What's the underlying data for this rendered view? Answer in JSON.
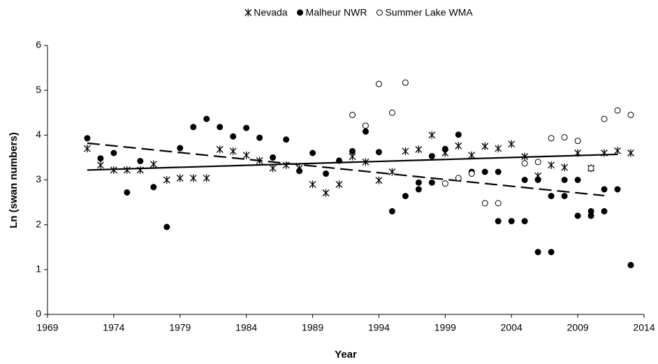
{
  "chart_data": {
    "type": "scatter",
    "xlabel": "Year",
    "ylabel": "Ln (swan numbers)",
    "xlim": [
      1969,
      2014
    ],
    "xticks": [
      1969,
      1974,
      1979,
      1984,
      1989,
      1994,
      1999,
      2004,
      2009,
      2014
    ],
    "ylim": [
      0,
      6
    ],
    "yticks": [
      0,
      1,
      2,
      3,
      4,
      5,
      6
    ],
    "legend": "top",
    "series": [
      {
        "name": "Nevada",
        "color": "#000000",
        "marker": "asterisk",
        "x": [
          1972,
          1973,
          1974,
          1975,
          1976,
          1977,
          1978,
          1979,
          1980,
          1981,
          1982,
          1983,
          1984,
          1985,
          1986,
          1987,
          1988,
          1989,
          1990,
          1991,
          1992,
          1993,
          1994,
          1995,
          1996,
          1997,
          1998,
          1999,
          2000,
          2001,
          2002,
          2003,
          2004,
          2005,
          2006,
          2007,
          2008,
          2009,
          2010,
          2011,
          2012,
          2013
        ],
        "y": [
          3.7,
          3.33,
          3.22,
          3.22,
          3.22,
          3.35,
          3.0,
          3.04,
          3.04,
          3.04,
          3.68,
          3.64,
          3.55,
          3.43,
          3.26,
          3.33,
          3.26,
          2.9,
          2.71,
          2.9,
          3.52,
          3.4,
          2.99,
          3.18,
          3.64,
          3.68,
          4.0,
          3.6,
          3.76,
          3.55,
          3.75,
          3.7,
          3.8,
          3.52,
          3.09,
          3.33,
          3.28,
          3.6,
          3.26,
          3.6,
          3.65,
          3.6
        ]
      },
      {
        "name": "Malheur NWR",
        "color": "#000000",
        "marker": "filled-circle",
        "x": [
          1972,
          1973,
          1974,
          1975,
          1976,
          1977,
          1978,
          1979,
          1980,
          1981,
          1982,
          1983,
          1984,
          1985,
          1986,
          1987,
          1988,
          1989,
          1990,
          1991,
          1992,
          1993,
          1994,
          1995,
          1996,
          1997,
          1997,
          1998,
          1998,
          1999,
          2000,
          2001,
          2002,
          2003,
          2003,
          2004,
          2005,
          2005,
          2006,
          2006,
          2007,
          2007,
          2008,
          2008,
          2009,
          2009,
          2010,
          2010,
          2011,
          2011,
          2012,
          2013
        ],
        "y": [
          3.93,
          3.48,
          3.6,
          2.72,
          3.42,
          2.84,
          1.95,
          3.71,
          4.18,
          4.36,
          4.18,
          3.97,
          4.16,
          3.94,
          3.5,
          3.9,
          3.2,
          3.6,
          3.14,
          3.43,
          3.64,
          4.08,
          3.62,
          2.3,
          2.64,
          2.94,
          2.79,
          3.53,
          2.94,
          3.69,
          4.01,
          3.18,
          3.18,
          3.18,
          2.08,
          2.08,
          3.0,
          2.08,
          3.0,
          1.39,
          2.64,
          1.39,
          3.0,
          2.64,
          3.0,
          2.2,
          2.3,
          2.2,
          2.3,
          2.79,
          2.79,
          1.1
        ]
      },
      {
        "name": "Summer Lake WMA",
        "color": "#000000",
        "marker": "open-circle",
        "x": [
          1992,
          1993,
          1994,
          1995,
          1996,
          1999,
          2000,
          2001,
          2002,
          2003,
          2005,
          2006,
          2007,
          2008,
          2009,
          2010,
          2011,
          2012,
          2013
        ],
        "y": [
          4.45,
          4.21,
          5.14,
          4.5,
          5.17,
          2.92,
          3.04,
          3.14,
          2.48,
          2.48,
          3.37,
          3.4,
          3.93,
          3.95,
          3.87,
          3.26,
          4.36,
          4.55,
          4.45
        ]
      }
    ],
    "trendlines": [
      {
        "style": "solid",
        "color": "#000000",
        "x": [
          1972,
          2012
        ],
        "y": [
          3.22,
          3.57
        ]
      },
      {
        "style": "dashed",
        "color": "#000000",
        "x": [
          1972,
          2011
        ],
        "y": [
          3.82,
          2.65
        ]
      }
    ]
  }
}
